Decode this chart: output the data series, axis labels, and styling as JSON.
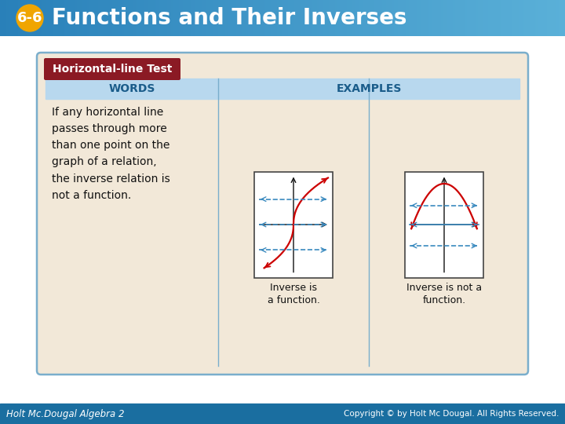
{
  "title": "Functions and Their Inverses",
  "title_badge": "6-6",
  "badge_color": "#f0a500",
  "badge_text_color": "#ffffff",
  "title_text_color": "#ffffff",
  "slide_bg": "#ffffff",
  "footer_bg": "#1a6ea0",
  "footer_left": "Holt Mc.Dougal Algebra 2",
  "footer_right": "Copyright © by Holt Mc Dougal. All Rights Reserved.",
  "footer_text_color": "#ffffff",
  "box_bg": "#f2e8d8",
  "box_border": "#7aaecc",
  "box_title": "Horizontal-line Test",
  "box_title_bg": "#8b1a24",
  "box_title_text": "#ffffff",
  "words_header": "WORDS",
  "examples_header": "EXAMPLES",
  "header_row_bg": "#b8d8ee",
  "words_text": "If any horizontal line\npasses through more\nthan one point on the\ngraph of a relation,\nthe inverse relation is\nnot a function.",
  "caption1": "Inverse is\na function.",
  "caption2": "Inverse is not a\nfunction.",
  "curve_color": "#cc0000",
  "hline_color": "#3a8abf",
  "axis_color": "#111111",
  "header_text_color": "#1a5c8a",
  "header_bg_left": "#2980b9",
  "header_bg_right": "#5ab0d8"
}
